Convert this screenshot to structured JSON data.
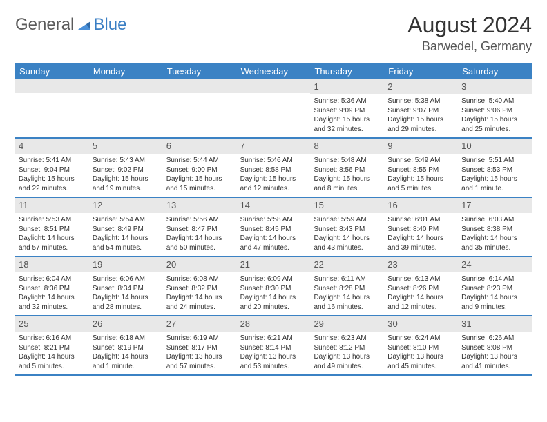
{
  "logo": {
    "word1": "General",
    "word2": "Blue"
  },
  "title": "August 2024",
  "location": "Barwedel, Germany",
  "colors": {
    "header_bg": "#3b82c4",
    "daynum_bg": "#e8e8e8",
    "divider": "#3b82c4",
    "text": "#333333"
  },
  "dayNames": [
    "Sunday",
    "Monday",
    "Tuesday",
    "Wednesday",
    "Thursday",
    "Friday",
    "Saturday"
  ],
  "weeks": [
    [
      null,
      null,
      null,
      null,
      {
        "n": "1",
        "sr": "Sunrise: 5:36 AM",
        "ss": "Sunset: 9:09 PM",
        "dl": "Daylight: 15 hours and 32 minutes."
      },
      {
        "n": "2",
        "sr": "Sunrise: 5:38 AM",
        "ss": "Sunset: 9:07 PM",
        "dl": "Daylight: 15 hours and 29 minutes."
      },
      {
        "n": "3",
        "sr": "Sunrise: 5:40 AM",
        "ss": "Sunset: 9:06 PM",
        "dl": "Daylight: 15 hours and 25 minutes."
      }
    ],
    [
      {
        "n": "4",
        "sr": "Sunrise: 5:41 AM",
        "ss": "Sunset: 9:04 PM",
        "dl": "Daylight: 15 hours and 22 minutes."
      },
      {
        "n": "5",
        "sr": "Sunrise: 5:43 AM",
        "ss": "Sunset: 9:02 PM",
        "dl": "Daylight: 15 hours and 19 minutes."
      },
      {
        "n": "6",
        "sr": "Sunrise: 5:44 AM",
        "ss": "Sunset: 9:00 PM",
        "dl": "Daylight: 15 hours and 15 minutes."
      },
      {
        "n": "7",
        "sr": "Sunrise: 5:46 AM",
        "ss": "Sunset: 8:58 PM",
        "dl": "Daylight: 15 hours and 12 minutes."
      },
      {
        "n": "8",
        "sr": "Sunrise: 5:48 AM",
        "ss": "Sunset: 8:56 PM",
        "dl": "Daylight: 15 hours and 8 minutes."
      },
      {
        "n": "9",
        "sr": "Sunrise: 5:49 AM",
        "ss": "Sunset: 8:55 PM",
        "dl": "Daylight: 15 hours and 5 minutes."
      },
      {
        "n": "10",
        "sr": "Sunrise: 5:51 AM",
        "ss": "Sunset: 8:53 PM",
        "dl": "Daylight: 15 hours and 1 minute."
      }
    ],
    [
      {
        "n": "11",
        "sr": "Sunrise: 5:53 AM",
        "ss": "Sunset: 8:51 PM",
        "dl": "Daylight: 14 hours and 57 minutes."
      },
      {
        "n": "12",
        "sr": "Sunrise: 5:54 AM",
        "ss": "Sunset: 8:49 PM",
        "dl": "Daylight: 14 hours and 54 minutes."
      },
      {
        "n": "13",
        "sr": "Sunrise: 5:56 AM",
        "ss": "Sunset: 8:47 PM",
        "dl": "Daylight: 14 hours and 50 minutes."
      },
      {
        "n": "14",
        "sr": "Sunrise: 5:58 AM",
        "ss": "Sunset: 8:45 PM",
        "dl": "Daylight: 14 hours and 47 minutes."
      },
      {
        "n": "15",
        "sr": "Sunrise: 5:59 AM",
        "ss": "Sunset: 8:43 PM",
        "dl": "Daylight: 14 hours and 43 minutes."
      },
      {
        "n": "16",
        "sr": "Sunrise: 6:01 AM",
        "ss": "Sunset: 8:40 PM",
        "dl": "Daylight: 14 hours and 39 minutes."
      },
      {
        "n": "17",
        "sr": "Sunrise: 6:03 AM",
        "ss": "Sunset: 8:38 PM",
        "dl": "Daylight: 14 hours and 35 minutes."
      }
    ],
    [
      {
        "n": "18",
        "sr": "Sunrise: 6:04 AM",
        "ss": "Sunset: 8:36 PM",
        "dl": "Daylight: 14 hours and 32 minutes."
      },
      {
        "n": "19",
        "sr": "Sunrise: 6:06 AM",
        "ss": "Sunset: 8:34 PM",
        "dl": "Daylight: 14 hours and 28 minutes."
      },
      {
        "n": "20",
        "sr": "Sunrise: 6:08 AM",
        "ss": "Sunset: 8:32 PM",
        "dl": "Daylight: 14 hours and 24 minutes."
      },
      {
        "n": "21",
        "sr": "Sunrise: 6:09 AM",
        "ss": "Sunset: 8:30 PM",
        "dl": "Daylight: 14 hours and 20 minutes."
      },
      {
        "n": "22",
        "sr": "Sunrise: 6:11 AM",
        "ss": "Sunset: 8:28 PM",
        "dl": "Daylight: 14 hours and 16 minutes."
      },
      {
        "n": "23",
        "sr": "Sunrise: 6:13 AM",
        "ss": "Sunset: 8:26 PM",
        "dl": "Daylight: 14 hours and 12 minutes."
      },
      {
        "n": "24",
        "sr": "Sunrise: 6:14 AM",
        "ss": "Sunset: 8:23 PM",
        "dl": "Daylight: 14 hours and 9 minutes."
      }
    ],
    [
      {
        "n": "25",
        "sr": "Sunrise: 6:16 AM",
        "ss": "Sunset: 8:21 PM",
        "dl": "Daylight: 14 hours and 5 minutes."
      },
      {
        "n": "26",
        "sr": "Sunrise: 6:18 AM",
        "ss": "Sunset: 8:19 PM",
        "dl": "Daylight: 14 hours and 1 minute."
      },
      {
        "n": "27",
        "sr": "Sunrise: 6:19 AM",
        "ss": "Sunset: 8:17 PM",
        "dl": "Daylight: 13 hours and 57 minutes."
      },
      {
        "n": "28",
        "sr": "Sunrise: 6:21 AM",
        "ss": "Sunset: 8:14 PM",
        "dl": "Daylight: 13 hours and 53 minutes."
      },
      {
        "n": "29",
        "sr": "Sunrise: 6:23 AM",
        "ss": "Sunset: 8:12 PM",
        "dl": "Daylight: 13 hours and 49 minutes."
      },
      {
        "n": "30",
        "sr": "Sunrise: 6:24 AM",
        "ss": "Sunset: 8:10 PM",
        "dl": "Daylight: 13 hours and 45 minutes."
      },
      {
        "n": "31",
        "sr": "Sunrise: 6:26 AM",
        "ss": "Sunset: 8:08 PM",
        "dl": "Daylight: 13 hours and 41 minutes."
      }
    ]
  ]
}
